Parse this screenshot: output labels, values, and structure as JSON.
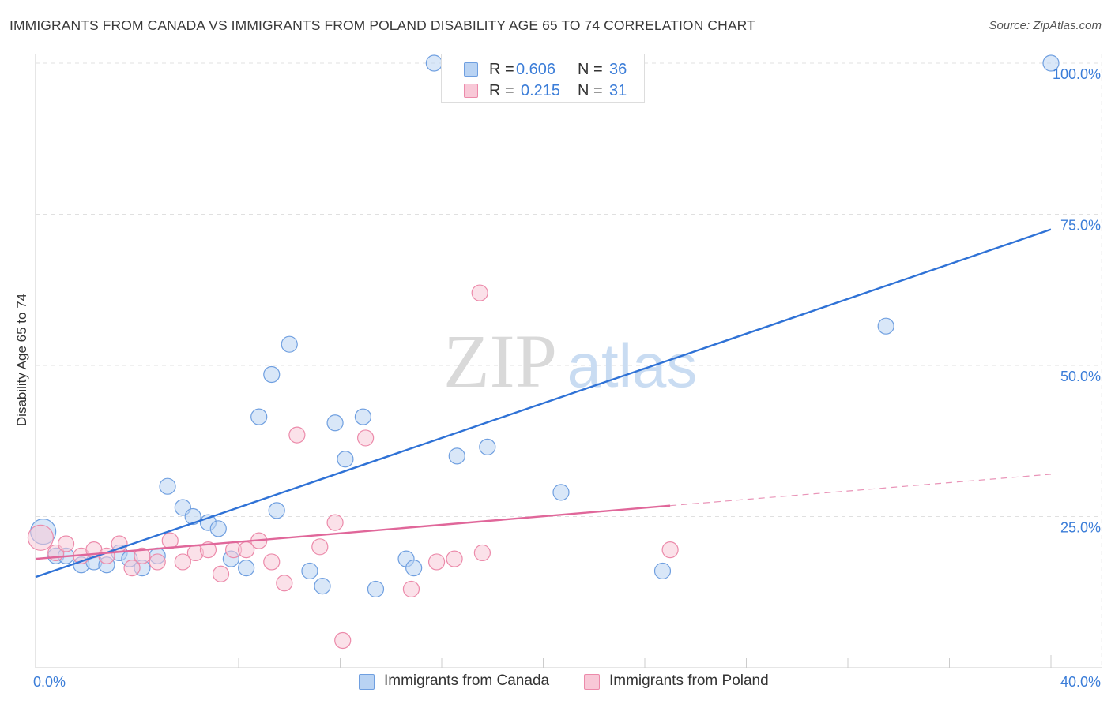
{
  "header": {
    "title": "IMMIGRANTS FROM CANADA VS IMMIGRANTS FROM POLAND DISABILITY AGE 65 TO 74 CORRELATION CHART",
    "source": "Source: ZipAtlas.com"
  },
  "watermark": {
    "zip": "ZIP",
    "atlas": "atlas"
  },
  "legend": {
    "r_label": "R =",
    "n_label": "N =",
    "canada": {
      "r": "0.606",
      "n": "36"
    },
    "poland": {
      "r": "0.215",
      "n": "31"
    }
  },
  "colors": {
    "canada_fill": "#b9d3f3",
    "canada_stroke": "#6f9fe0",
    "canada_line": "#2f72d6",
    "poland_fill": "#f8c8d7",
    "poland_stroke": "#ec8aaa",
    "poland_line": "#e0679a",
    "axis_tick_text": "#3b7dd8",
    "grid": "#e0e0e0"
  },
  "chart_data": {
    "type": "scatter",
    "title": "IMMIGRANTS FROM CANADA VS IMMIGRANTS FROM POLAND DISABILITY AGE 65 TO 74 CORRELATION CHART",
    "xlabel": "",
    "ylabel": "Disability Age 65 to 74",
    "xlim": [
      0,
      40
    ],
    "ylim": [
      0,
      100
    ],
    "x_ticks": [
      0,
      40
    ],
    "x_tick_labels": [
      "0.0%",
      "40.0%"
    ],
    "y_ticks": [
      25,
      50,
      75,
      100
    ],
    "y_tick_labels": [
      "25.0%",
      "50.0%",
      "75.0%",
      "100.0%"
    ],
    "grid": true,
    "legend_position": "top-center",
    "series": [
      {
        "name": "Immigrants from Canada",
        "points": [
          [
            0.3,
            22.5
          ],
          [
            0.8,
            18.5
          ],
          [
            1.2,
            18.5
          ],
          [
            1.8,
            17.0
          ],
          [
            2.3,
            17.5
          ],
          [
            2.8,
            17.0
          ],
          [
            3.3,
            19.0
          ],
          [
            3.7,
            18.0
          ],
          [
            4.2,
            16.5
          ],
          [
            4.8,
            18.5
          ],
          [
            5.2,
            30.0
          ],
          [
            5.8,
            26.5
          ],
          [
            6.2,
            25.0
          ],
          [
            6.8,
            24.0
          ],
          [
            7.2,
            23.0
          ],
          [
            7.7,
            18.0
          ],
          [
            8.3,
            16.5
          ],
          [
            8.8,
            41.5
          ],
          [
            9.3,
            48.5
          ],
          [
            9.5,
            26.0
          ],
          [
            10.0,
            53.5
          ],
          [
            10.8,
            16.0
          ],
          [
            11.3,
            13.5
          ],
          [
            11.8,
            40.5
          ],
          [
            12.2,
            34.5
          ],
          [
            12.9,
            41.5
          ],
          [
            13.4,
            13.0
          ],
          [
            14.6,
            18.0
          ],
          [
            14.9,
            16.5
          ],
          [
            15.7,
            100.0
          ],
          [
            16.6,
            35.0
          ],
          [
            17.8,
            36.5
          ],
          [
            20.7,
            29.0
          ],
          [
            24.7,
            16.0
          ],
          [
            33.5,
            56.5
          ],
          [
            40.0,
            100.0
          ]
        ],
        "sizes": [
          16,
          10,
          10,
          10,
          10,
          10,
          10,
          10,
          10,
          10,
          10,
          10,
          10,
          10,
          10,
          10,
          10,
          10,
          10,
          10,
          10,
          10,
          10,
          10,
          10,
          10,
          10,
          10,
          10,
          10,
          10,
          10,
          10,
          10,
          10,
          10
        ],
        "trend": {
          "x": [
            0,
            40
          ],
          "y": [
            15.0,
            72.5
          ]
        }
      },
      {
        "name": "Immigrants from Poland",
        "points": [
          [
            0.2,
            21.5
          ],
          [
            0.8,
            19.0
          ],
          [
            1.2,
            20.5
          ],
          [
            1.8,
            18.5
          ],
          [
            2.3,
            19.5
          ],
          [
            2.8,
            18.5
          ],
          [
            3.3,
            20.5
          ],
          [
            3.8,
            16.5
          ],
          [
            4.2,
            18.5
          ],
          [
            4.8,
            17.5
          ],
          [
            5.3,
            21.0
          ],
          [
            5.8,
            17.5
          ],
          [
            6.3,
            19.0
          ],
          [
            6.8,
            19.5
          ],
          [
            7.3,
            15.5
          ],
          [
            7.8,
            19.5
          ],
          [
            8.3,
            19.5
          ],
          [
            8.8,
            21.0
          ],
          [
            9.3,
            17.5
          ],
          [
            9.8,
            14.0
          ],
          [
            10.3,
            38.5
          ],
          [
            11.2,
            20.0
          ],
          [
            11.8,
            24.0
          ],
          [
            12.1,
            4.5
          ],
          [
            13.0,
            38.0
          ],
          [
            14.8,
            13.0
          ],
          [
            15.8,
            17.5
          ],
          [
            16.5,
            18.0
          ],
          [
            17.5,
            62.0
          ],
          [
            17.6,
            19.0
          ],
          [
            25.0,
            19.5
          ]
        ],
        "sizes": [
          16,
          10,
          10,
          10,
          10,
          10,
          10,
          10,
          10,
          10,
          10,
          10,
          10,
          10,
          10,
          10,
          10,
          10,
          10,
          10,
          10,
          10,
          10,
          10,
          10,
          10,
          10,
          10,
          10,
          10,
          10
        ],
        "trend": {
          "x": [
            0,
            25
          ],
          "y": [
            18.0,
            26.8
          ],
          "dashed_to": [
            40,
            32.0
          ]
        }
      }
    ]
  },
  "bottom_legend": {
    "canada_label": "Immigrants from Canada",
    "poland_label": "Immigrants from Poland"
  }
}
